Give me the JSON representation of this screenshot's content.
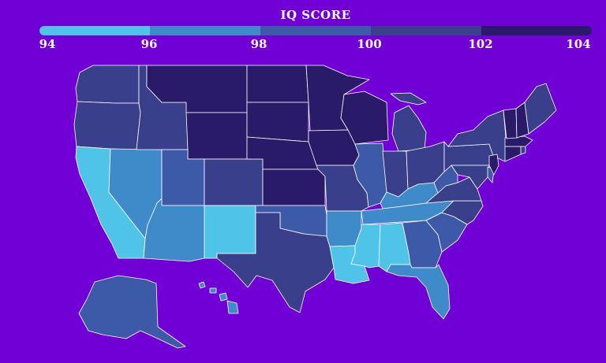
{
  "legend": {
    "title": "IQ SCORE",
    "ticks": [
      "94",
      "96",
      "98",
      "100",
      "102",
      "104"
    ],
    "colors": [
      "#4fc3e8",
      "#3f8ac8",
      "#3d5aa8",
      "#3a3f8c",
      "#2a1a6a"
    ]
  },
  "map": {
    "background": "#7000d6",
    "state_colors": {
      "WA": "#3a3f8c",
      "OR": "#3a3f8c",
      "CA": "#4fc3e8",
      "NV": "#3f8ac8",
      "ID": "#3a3f8c",
      "MT": "#2a1a6a",
      "WY": "#2a1a6a",
      "UT": "#3d5aa8",
      "CO": "#3a3f8c",
      "AZ": "#3f8ac8",
      "NM": "#4fc3e8",
      "ND": "#2a1a6a",
      "SD": "#2a1a6a",
      "NE": "#2a1a6a",
      "KS": "#2a1a6a",
      "OK": "#3d5aa8",
      "TX": "#3a3f8c",
      "MN": "#2a1a6a",
      "IA": "#2a1a6a",
      "MO": "#3a3f8c",
      "AR": "#3f8ac8",
      "LA": "#4fc3e8",
      "WI": "#2a1a6a",
      "IL": "#3d5aa8",
      "MI": "#3a3f8c",
      "IN": "#3a3f8c",
      "OH": "#3a3f8c",
      "KY": "#3f8ac8",
      "TN": "#3f8ac8",
      "MS": "#4fc3e8",
      "AL": "#4fc3e8",
      "GA": "#3d5aa8",
      "FL": "#3f8ac8",
      "SC": "#3d5aa8",
      "NC": "#3a3f8c",
      "VA": "#3a3f8c",
      "WV": "#3d5aa8",
      "PA": "#3a3f8c",
      "NY": "#3a3f8c",
      "MD": "#3a3f8c",
      "DE": "#3d5aa8",
      "NJ": "#2a1a6a",
      "CT": "#2a1a6a",
      "RI": "#3a3f8c",
      "MA": "#2a1a6a",
      "VT": "#2a1a6a",
      "NH": "#2a1a6a",
      "ME": "#3a3f8c",
      "AK": "#3d5aa8",
      "HI": "#3f8ac8"
    }
  }
}
